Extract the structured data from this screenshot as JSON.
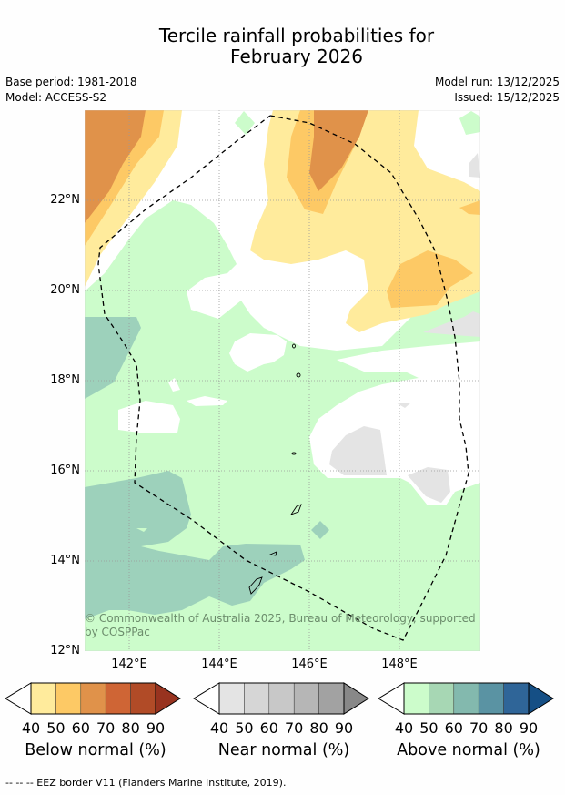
{
  "header": {
    "title_line1": "Tercile rainfall probabilities for",
    "title_line2": "February 2026",
    "base_period": "Base period: 1981-2018",
    "model": "Model: ACCESS-S2",
    "model_run": "Model run: 13/12/2025",
    "issued": "Issued: 15/12/2025"
  },
  "map": {
    "lat_labels": [
      "22°N",
      "20°N",
      "18°N",
      "16°N",
      "14°N",
      "12°N"
    ],
    "lon_labels": [
      "142°E",
      "144°E",
      "146°E",
      "148°E"
    ],
    "credit": "© Commonwealth of Australia 2025, Bureau of Meteorology, supported by COSPPac"
  },
  "colorbars": [
    {
      "title": "Below normal (%)",
      "ticks": [
        "40",
        "50",
        "60",
        "70",
        "80",
        "90"
      ],
      "colors": [
        "#ffeb9c",
        "#fdc965",
        "#e0924a",
        "#cf6535",
        "#b14b27",
        "#98331f"
      ]
    },
    {
      "title": "Near normal (%)",
      "ticks": [
        "40",
        "50",
        "60",
        "70",
        "80",
        "90"
      ],
      "colors": [
        "#e4e4e4",
        "#d6d6d6",
        "#c8c8c8",
        "#b6b6b6",
        "#a2a2a2",
        "#888888"
      ]
    },
    {
      "title": "Above normal (%)",
      "ticks": [
        "40",
        "50",
        "60",
        "70",
        "80",
        "90"
      ],
      "colors": [
        "#ccfccb",
        "#a7d7b4",
        "#83b9ae",
        "#5a93a3",
        "#2f6598",
        "#154f85"
      ]
    }
  ],
  "footnote": "--  --  -- EEZ border V11 (Flanders Marine Institute, 2019)."
}
